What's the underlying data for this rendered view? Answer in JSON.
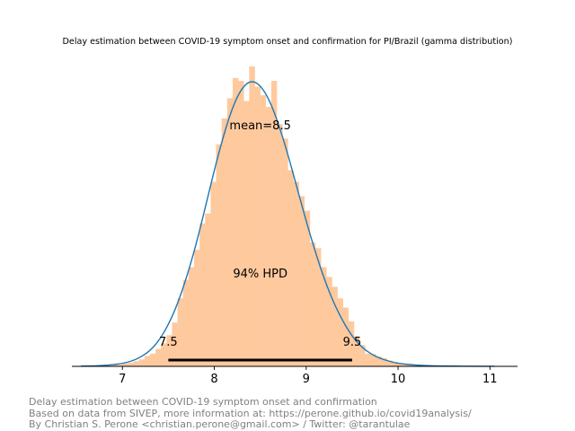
{
  "chart_data": {
    "type": "histogram",
    "title": "Delay estimation between COVID-19 symptom onset and confirmation for PI/Brazil (gamma distribution)",
    "xlabel": "",
    "ylabel": "",
    "xlim": [
      6.45,
      11.3
    ],
    "x_ticks": [
      "7",
      "8",
      "9",
      "10",
      "11"
    ],
    "x_tick_values": [
      7,
      8,
      9,
      10,
      11
    ],
    "y_axis_visible": false,
    "grid": false,
    "histogram": {
      "color": "#ffc99e",
      "bin_width": 0.06,
      "bins": [
        [
          6.52,
          0.005
        ],
        [
          6.58,
          0.006
        ],
        [
          6.64,
          0.01
        ],
        [
          6.7,
          0.015
        ],
        [
          6.76,
          0.02
        ],
        [
          6.82,
          0.02
        ],
        [
          6.88,
          0.03
        ],
        [
          6.94,
          0.03
        ],
        [
          7.0,
          0.05
        ],
        [
          7.06,
          0.06
        ],
        [
          7.12,
          0.09
        ],
        [
          7.18,
          0.12
        ],
        [
          7.24,
          0.18
        ],
        [
          7.3,
          0.22
        ],
        [
          7.36,
          0.3
        ],
        [
          7.42,
          0.4
        ],
        [
          7.48,
          0.54
        ],
        [
          7.54,
          0.76
        ],
        [
          7.6,
          1.18
        ],
        [
          7.66,
          1.5
        ],
        [
          7.72,
          1.72
        ],
        [
          7.78,
          2.02
        ],
        [
          7.84,
          2.48
        ],
        [
          7.9,
          2.65
        ],
        [
          7.96,
          3.2
        ],
        [
          8.02,
          3.85
        ],
        [
          8.08,
          4.3
        ],
        [
          8.14,
          4.65
        ],
        [
          8.2,
          5.0
        ],
        [
          8.26,
          4.95
        ],
        [
          8.32,
          4.6
        ],
        [
          8.38,
          5.2
        ],
        [
          8.44,
          4.85
        ],
        [
          8.5,
          4.7
        ],
        [
          8.56,
          4.5
        ],
        [
          8.62,
          4.95
        ],
        [
          8.68,
          4.2
        ],
        [
          8.74,
          3.95
        ],
        [
          8.8,
          3.4
        ],
        [
          8.86,
          3.2
        ],
        [
          8.92,
          2.95
        ],
        [
          8.98,
          2.7
        ],
        [
          9.04,
          2.15
        ],
        [
          9.1,
          2.05
        ],
        [
          9.16,
          1.72
        ],
        [
          9.22,
          1.55
        ],
        [
          9.28,
          1.38
        ],
        [
          9.34,
          1.18
        ],
        [
          9.4,
          1.02
        ],
        [
          9.46,
          0.78
        ],
        [
          9.52,
          0.52
        ],
        [
          9.58,
          0.37
        ],
        [
          9.64,
          0.22
        ],
        [
          9.7,
          0.21
        ],
        [
          9.76,
          0.17
        ],
        [
          9.82,
          0.14
        ],
        [
          9.88,
          0.1
        ],
        [
          9.94,
          0.08
        ],
        [
          10.0,
          0.06
        ],
        [
          10.06,
          0.04
        ],
        [
          10.12,
          0.03
        ],
        [
          10.18,
          0.025
        ],
        [
          10.24,
          0.02
        ],
        [
          10.3,
          0.01
        ],
        [
          10.36,
          0.01
        ],
        [
          10.42,
          0.008
        ],
        [
          10.48,
          0.005
        ],
        [
          10.54,
          0.004
        ],
        [
          10.6,
          0.003
        ]
      ]
    },
    "kde": {
      "color": "#1f77b4",
      "points": [
        [
          6.55,
          0.004
        ],
        [
          6.7,
          0.008
        ],
        [
          6.85,
          0.02
        ],
        [
          7.0,
          0.05
        ],
        [
          7.1,
          0.09
        ],
        [
          7.2,
          0.16
        ],
        [
          7.3,
          0.27
        ],
        [
          7.4,
          0.45
        ],
        [
          7.5,
          0.72
        ],
        [
          7.6,
          1.08
        ],
        [
          7.7,
          1.55
        ],
        [
          7.8,
          2.1
        ],
        [
          7.9,
          2.74
        ],
        [
          8.0,
          3.4
        ],
        [
          8.1,
          4.0
        ],
        [
          8.2,
          4.5
        ],
        [
          8.3,
          4.83
        ],
        [
          8.4,
          4.96
        ],
        [
          8.5,
          4.88
        ],
        [
          8.6,
          4.62
        ],
        [
          8.7,
          4.2
        ],
        [
          8.8,
          3.68
        ],
        [
          8.9,
          3.1
        ],
        [
          9.0,
          2.52
        ],
        [
          9.1,
          1.98
        ],
        [
          9.2,
          1.5
        ],
        [
          9.3,
          1.1
        ],
        [
          9.4,
          0.78
        ],
        [
          9.5,
          0.52
        ],
        [
          9.6,
          0.34
        ],
        [
          9.7,
          0.22
        ],
        [
          9.8,
          0.14
        ],
        [
          9.9,
          0.09
        ],
        [
          10.0,
          0.05
        ],
        [
          10.2,
          0.02
        ],
        [
          10.4,
          0.008
        ],
        [
          10.6,
          0.004
        ],
        [
          10.8,
          0.002
        ],
        [
          11.05,
          0.001
        ]
      ]
    },
    "y_max": 5.2,
    "annotations": {
      "mean_label": "mean=8.5",
      "mean_value": 8.5,
      "hpd_label": "94% HPD",
      "hpd_low": 7.5,
      "hpd_high": 9.5,
      "hpd_low_label": "7.5",
      "hpd_high_label": "9.5"
    }
  },
  "footer": {
    "line1": "Delay estimation between COVID-19 symptom onset and confirmation",
    "line2": "Based on data from SIVEP, more information at: https://perone.github.io/covid19analysis/",
    "line3": "By Christian S. Perone <christian.perone@gmail.com> / Twitter: @tarantulae"
  }
}
